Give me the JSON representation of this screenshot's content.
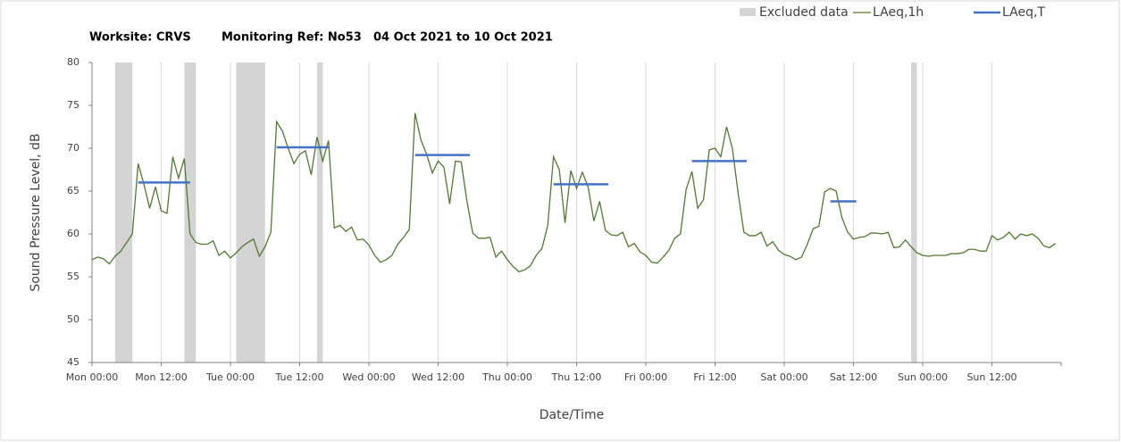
{
  "chart_data": {
    "type": "line",
    "title_parts": [
      "Worksite: CRVS",
      "Monitoring Ref: No53",
      "04 Oct 2021 to 10 Oct 2021"
    ],
    "xlabel": "Date/Time",
    "ylabel": "Sound Pressure Level, dB",
    "xlim": [
      0,
      168
    ],
    "ylim": [
      45,
      80
    ],
    "yticks": [
      45,
      50,
      55,
      60,
      65,
      70,
      75,
      80
    ],
    "xticks": [
      {
        "value": 0,
        "label": "Mon 00:00"
      },
      {
        "value": 12,
        "label": "Mon 12:00"
      },
      {
        "value": 24,
        "label": "Tue 00:00"
      },
      {
        "value": 36,
        "label": "Tue 12:00"
      },
      {
        "value": 48,
        "label": "Wed 00:00"
      },
      {
        "value": 60,
        "label": "Wed 12:00"
      },
      {
        "value": 72,
        "label": "Thu 00:00"
      },
      {
        "value": 84,
        "label": "Thu 12:00"
      },
      {
        "value": 96,
        "label": "Fri 00:00"
      },
      {
        "value": 108,
        "label": "Fri 12:00"
      },
      {
        "value": 120,
        "label": "Sat 00:00"
      },
      {
        "value": 132,
        "label": "Sat 12:00"
      },
      {
        "value": 144,
        "label": "Sun 00:00"
      },
      {
        "value": 156,
        "label": "Sun 12:00"
      }
    ],
    "grid": "x",
    "excluded": {
      "name": "Excluded data",
      "color": "#d4d4d4",
      "ranges": [
        [
          4,
          7
        ],
        [
          16,
          18
        ],
        [
          25,
          30
        ],
        [
          39,
          40
        ],
        [
          142,
          143
        ]
      ]
    },
    "series": [
      {
        "name": "LAeq,1h",
        "color": "#4e7a2e",
        "x": [
          0,
          1,
          2,
          3,
          4,
          5,
          6,
          7,
          8,
          9,
          10,
          11,
          12,
          13,
          14,
          15,
          16,
          17,
          18,
          19,
          20,
          21,
          22,
          23,
          24,
          25,
          26,
          27,
          28,
          29,
          30,
          31,
          32,
          33,
          34,
          35,
          36,
          37,
          38,
          39,
          40,
          41,
          42,
          43,
          44,
          45,
          46,
          47,
          48,
          49,
          50,
          51,
          52,
          53,
          54,
          55,
          56,
          57,
          58,
          59,
          60,
          61,
          62,
          63,
          64,
          65,
          66,
          67,
          68,
          69,
          70,
          71,
          72,
          73,
          74,
          75,
          76,
          77,
          78,
          79,
          80,
          81,
          82,
          83,
          84,
          85,
          86,
          87,
          88,
          89,
          90,
          91,
          92,
          93,
          94,
          95,
          96,
          97,
          98,
          99,
          100,
          101,
          102,
          103,
          104,
          105,
          106,
          107,
          108,
          109,
          110,
          111,
          112,
          113,
          114,
          115,
          116,
          117,
          118,
          119,
          120,
          121,
          122,
          123,
          124,
          125,
          126,
          127,
          128,
          129,
          130,
          131,
          132,
          133,
          134,
          135,
          136,
          137,
          138,
          139,
          140,
          141,
          142,
          143,
          144,
          145,
          146,
          147,
          148,
          149,
          150,
          151,
          152,
          153,
          154,
          155,
          156,
          157,
          158,
          159,
          160,
          161,
          162,
          163,
          164,
          165,
          166,
          167
        ],
        "values": [
          57.0,
          57.3,
          57.1,
          56.5,
          57.4,
          58.0,
          59.0,
          60.0,
          68.2,
          65.8,
          63.0,
          65.5,
          62.7,
          62.4,
          69.0,
          66.5,
          68.8,
          60.0,
          59.0,
          58.8,
          58.8,
          59.2,
          57.5,
          58.0,
          57.2,
          57.8,
          58.5,
          59.0,
          59.4,
          57.4,
          58.5,
          60.2,
          73.1,
          72.0,
          70.0,
          68.2,
          69.3,
          69.7,
          66.9,
          71.3,
          68.5,
          70.9,
          60.7,
          61.0,
          60.3,
          60.8,
          59.3,
          59.4,
          58.7,
          57.5,
          56.7,
          57.0,
          57.5,
          58.8,
          59.6,
          60.5,
          74.1,
          71.0,
          69.3,
          67.1,
          68.5,
          67.8,
          63.5,
          68.5,
          68.4,
          63.8,
          60.1,
          59.5,
          59.5,
          59.6,
          57.3,
          58.0,
          57.0,
          56.2,
          55.6,
          55.8,
          56.3,
          57.5,
          58.3,
          61.0,
          69.0,
          67.5,
          61.3,
          67.4,
          65.3,
          67.2,
          65.5,
          61.5,
          63.8,
          60.4,
          59.9,
          59.8,
          60.2,
          58.5,
          58.9,
          57.9,
          57.5,
          56.7,
          56.6,
          57.3,
          58.1,
          59.5,
          60.0,
          65.2,
          67.3,
          63.0,
          64.0,
          69.8,
          70.0,
          69.0,
          72.5,
          70.0,
          64.8,
          60.2,
          59.8,
          59.8,
          60.2,
          58.6,
          59.1,
          58.1,
          57.6,
          57.4,
          57.0,
          57.3,
          58.8,
          60.6,
          60.9,
          64.9,
          65.3,
          65.0,
          61.9,
          60.2,
          59.4,
          59.6,
          59.7,
          60.1,
          60.1,
          60.0,
          60.2,
          58.4,
          58.5,
          59.3,
          58.5,
          57.8,
          57.5,
          57.4,
          57.5,
          57.5,
          57.5,
          57.7,
          57.7,
          57.8,
          58.2,
          58.2,
          58.0,
          58.0,
          59.8,
          59.3,
          59.6,
          60.2,
          59.4,
          60.0,
          59.8,
          60.0,
          59.5,
          58.6,
          58.4,
          58.9
        ]
      },
      {
        "name": "LAeq,T",
        "color": "#4472c4",
        "segments": [
          {
            "start": 8,
            "end": 17,
            "value": 66.0
          },
          {
            "start": 32,
            "end": 41,
            "value": 70.1
          },
          {
            "start": 56,
            "end": 65.5,
            "value": 69.2
          },
          {
            "start": 80,
            "end": 89.5,
            "value": 65.8
          },
          {
            "start": 104,
            "end": 113.5,
            "value": 68.5
          },
          {
            "start": 128,
            "end": 132.5,
            "value": 63.8
          }
        ]
      }
    ]
  }
}
